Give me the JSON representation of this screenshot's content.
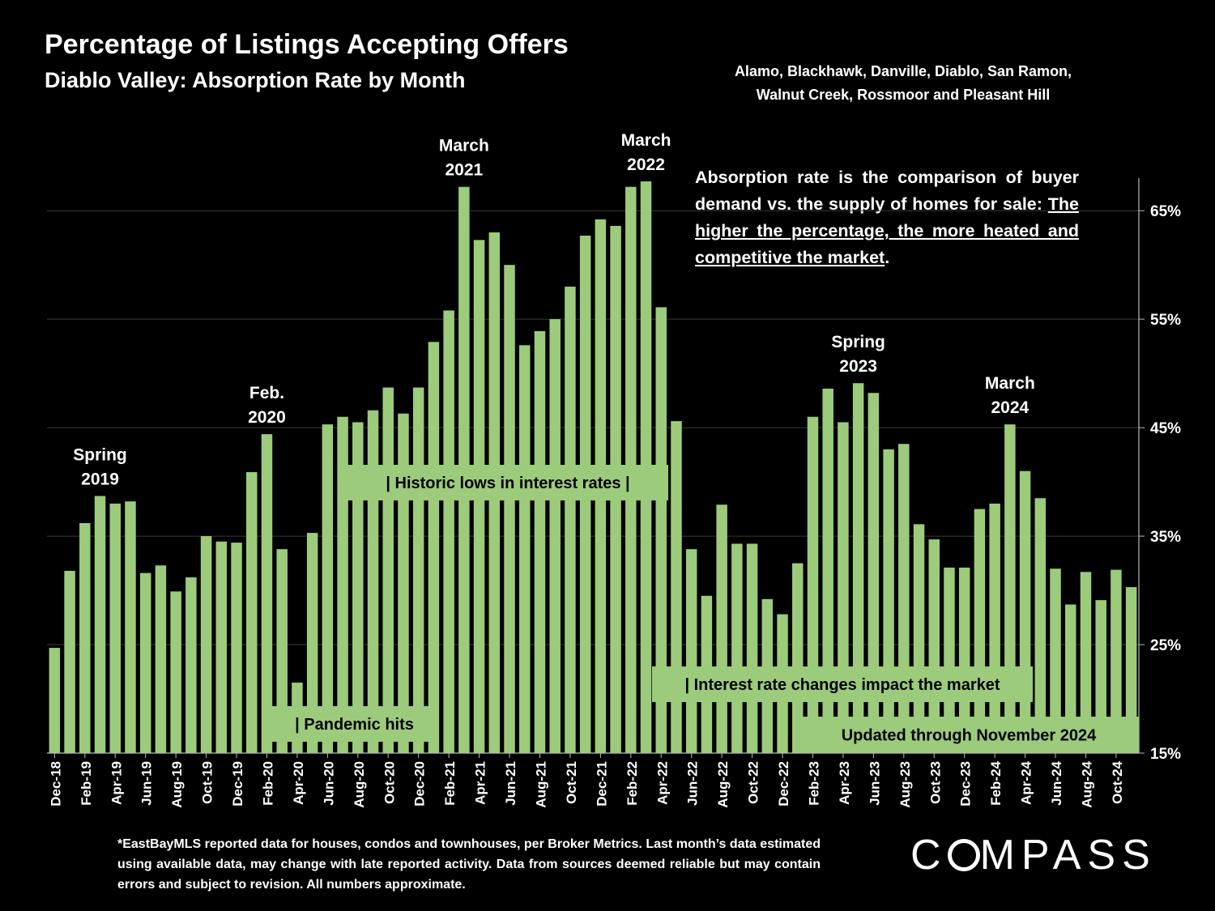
{
  "title": "Percentage of Listings Accepting Offers",
  "subtitle": "Diablo Valley:  Absorption Rate by Month",
  "regions_line1": "Alamo, Blackhawk, Danville, Diablo, San Ramon,",
  "regions_line2": "Walnut Creek, Rossmoor and Pleasant Hill",
  "explain_pre": "Absorption rate is the comparison of buyer demand vs. the supply of homes for sale: ",
  "explain_underlined": "The higher the percentage, the more heated and competitive the market",
  "explain_post": ".",
  "footnote": "*EastBayMLS reported data for houses, condos and townhouses, per Broker Metrics. Last month’s data estimated using available data, may change with late reported activity. Data from sources deemed reliable but may contain errors and subject to revision. All numbers approximate.",
  "logo": {
    "before": "C",
    "after": "MPASS"
  },
  "colors": {
    "bar": "#9ccb7c",
    "background": "#000000",
    "text": "#ffffff",
    "note_box": "#9ccb7c"
  },
  "chart_data": {
    "type": "bar",
    "ylim": [
      15,
      68
    ],
    "y_ticks": [
      "15%",
      "25%",
      "35%",
      "45%",
      "55%",
      "65%"
    ],
    "y_tick_values": [
      15,
      25,
      35,
      45,
      55,
      65
    ],
    "y_axis_side": "right",
    "grid": true,
    "categories": [
      "Dec-18",
      "Jan-19",
      "Feb-19",
      "Mar-19",
      "Apr-19",
      "May-19",
      "Jun-19",
      "Jul-19",
      "Aug-19",
      "Sep-19",
      "Oct-19",
      "Nov-19",
      "Dec-19",
      "Jan-20",
      "Feb-20",
      "Mar-20",
      "Apr-20",
      "May-20",
      "Jun-20",
      "Jul-20",
      "Aug-20",
      "Sep-20",
      "Oct-20",
      "Nov-20",
      "Dec-20",
      "Jan-21",
      "Feb-21",
      "Mar-21",
      "Apr-21",
      "May-21",
      "Jun-21",
      "Jul-21",
      "Aug-21",
      "Sep-21",
      "Oct-21",
      "Nov-21",
      "Dec-21",
      "Jan-22",
      "Feb-22",
      "Mar-22",
      "Apr-22",
      "May-22",
      "Jun-22",
      "Jul-22",
      "Aug-22",
      "Sep-22",
      "Oct-22",
      "Nov-22",
      "Dec-22",
      "Jan-23",
      "Feb-23",
      "Mar-23",
      "Apr-23",
      "May-23",
      "Jun-23",
      "Jul-23",
      "Aug-23",
      "Sep-23",
      "Oct-23",
      "Nov-23",
      "Dec-23",
      "Jan-24",
      "Feb-24",
      "Mar-24",
      "Apr-24",
      "May-24",
      "Jun-24",
      "Jul-24",
      "Aug-24",
      "Sep-24",
      "Oct-24",
      "Nov-24"
    ],
    "x_tick_labels": [
      "Dec-18",
      "Feb-19",
      "Apr-19",
      "Jun-19",
      "Aug-19",
      "Oct-19",
      "Dec-19",
      "Feb-20",
      "Apr-20",
      "Jun-20",
      "Aug-20",
      "Oct-20",
      "Dec-20",
      "Feb-21",
      "Apr-21",
      "Jun-21",
      "Aug-21",
      "Oct-21",
      "Dec-21",
      "Feb-22",
      "Apr-22",
      "Jun-22",
      "Aug-22",
      "Oct-22",
      "Dec-22",
      "Feb-23",
      "Apr-23",
      "Jun-23",
      "Aug-23",
      "Oct-23",
      "Dec-23",
      "Feb-24",
      "Apr-24",
      "Jun-24",
      "Aug-24",
      "Oct-24"
    ],
    "values": [
      24.7,
      31.8,
      36.2,
      38.7,
      38.0,
      38.2,
      31.6,
      32.3,
      29.9,
      31.2,
      35.0,
      34.5,
      34.4,
      40.9,
      44.4,
      33.8,
      21.5,
      35.3,
      45.3,
      46.0,
      45.5,
      46.6,
      48.7,
      46.3,
      48.7,
      52.9,
      55.8,
      67.2,
      62.3,
      63.0,
      60.0,
      52.6,
      53.9,
      55.0,
      58.0,
      62.7,
      64.2,
      63.6,
      67.2,
      67.7,
      56.1,
      45.6,
      33.8,
      29.5,
      37.9,
      34.3,
      34.3,
      29.2,
      27.8,
      32.5,
      46.0,
      48.6,
      45.5,
      49.1,
      48.2,
      43.0,
      43.5,
      36.1,
      34.7,
      32.1,
      32.1,
      37.5,
      38.0,
      45.3,
      41.0,
      38.5,
      32.0,
      28.7,
      31.7,
      29.1,
      31.9,
      30.3
    ],
    "annotations": [
      {
        "index": 3,
        "line1": "Spring",
        "line2": "2019"
      },
      {
        "index": 14,
        "line1": "Feb.",
        "line2": "2020"
      },
      {
        "index": 27,
        "line1": "March",
        "line2": "2021"
      },
      {
        "index": 39,
        "line1": "March",
        "line2": "2022"
      },
      {
        "index": 53,
        "line1": "Spring",
        "line2": "2023"
      },
      {
        "index": 63,
        "line1": "March",
        "line2": "2024"
      }
    ],
    "notes": [
      {
        "text": "|    Historic lows in interest rates    |"
      },
      {
        "text": "| Pandemic hits"
      },
      {
        "text": "| Interest rate changes impact the market"
      },
      {
        "text": "Updated through November 2024"
      }
    ]
  }
}
